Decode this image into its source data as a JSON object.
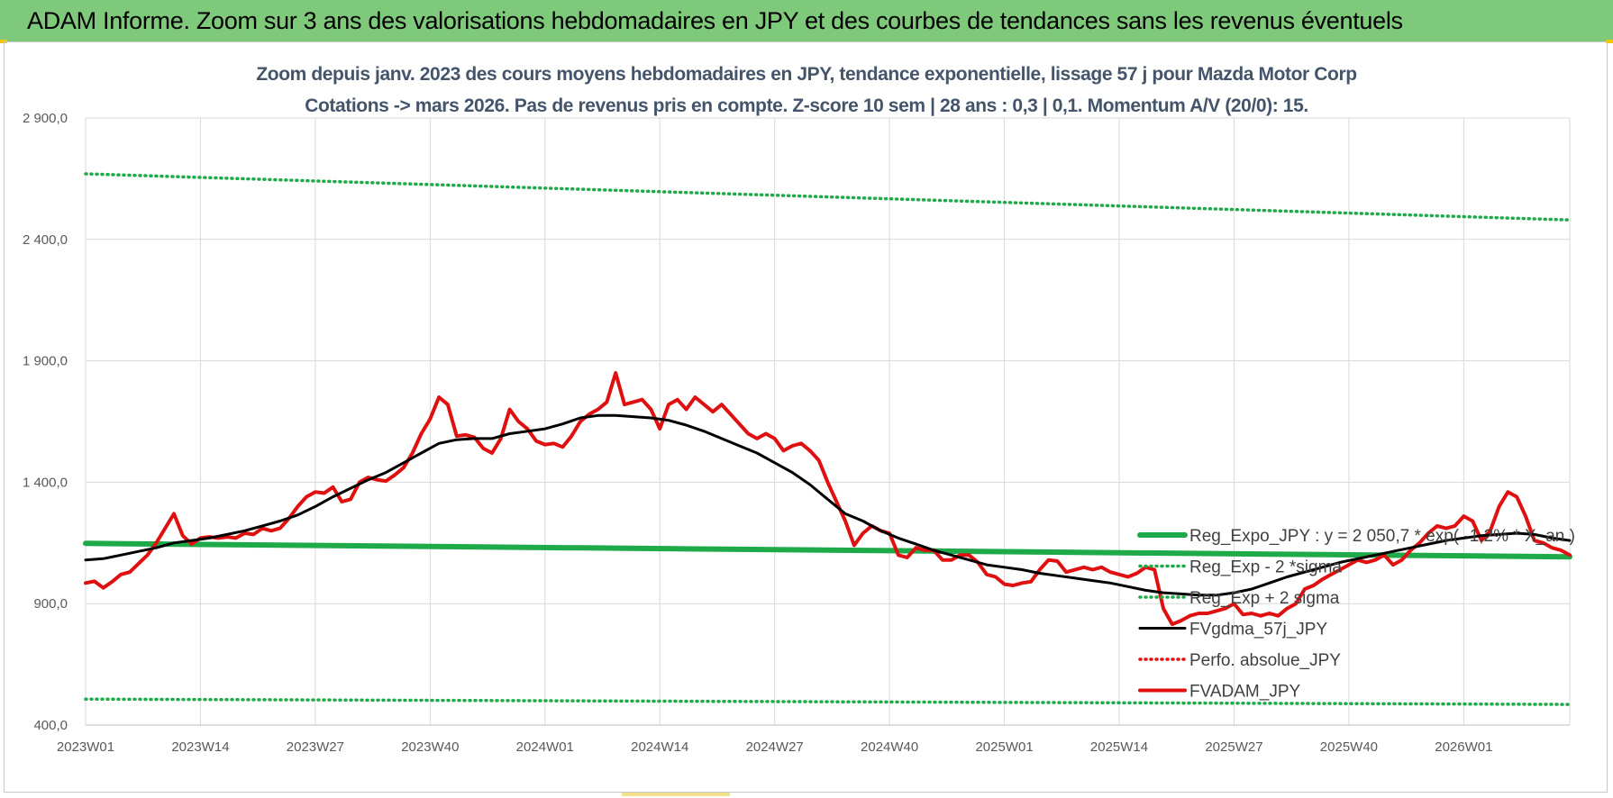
{
  "header": {
    "title": "ADAM Informe. Zoom sur 3 ans des valorisations hebdomadaires en JPY et des courbes de tendances sans les revenus éventuels"
  },
  "chart_data": {
    "type": "line",
    "title_line1": "Zoom depuis janv. 2023 des cours moyens hebdomadaires en JPY, tendance exponentielle, lissage 57 j pour Mazda Motor Corp",
    "title_line2": "Cotations -> mars 2026. Pas de revenus pris en compte. Z-score 10 sem | 28 ans : 0,3 | 0,1. Momentum A/V (20/0): 15.",
    "ylim": [
      400,
      2900
    ],
    "y_ticks": [
      400,
      900,
      1400,
      1900,
      2400,
      2900
    ],
    "y_tick_labels": [
      "400,0",
      "900,0",
      "1 400,0",
      "1 900,0",
      "2 400,0",
      "2 900,0"
    ],
    "x_tick_labels": [
      "2023W01",
      "2023W14",
      "2023W27",
      "2023W40",
      "2024W01",
      "2024W14",
      "2024W27",
      "2024W40",
      "2025W01",
      "2025W14",
      "2025W27",
      "2025W40",
      "2026W01"
    ],
    "x_tick_index": [
      0,
      13,
      26,
      39,
      52,
      65,
      78,
      91,
      104,
      117,
      130,
      143,
      156
    ],
    "n_weeks": 169,
    "legend_position": "right",
    "series": [
      {
        "name": "Reg_Expo_JPY : y = 2 050,7 * exp( -1,2% * X_an )",
        "style": "solid-thick",
        "color": "#1faa4a",
        "points": [
          [
            0,
            1148
          ],
          [
            168,
            1093
          ]
        ]
      },
      {
        "name": "Reg_Exp - 2 *sigma",
        "style": "dotted",
        "color": "#1faa4a",
        "points": [
          [
            0,
            507
          ],
          [
            168,
            485
          ]
        ]
      },
      {
        "name": "Reg_Exp + 2 sigma",
        "style": "dotted",
        "color": "#1faa4a",
        "points": [
          [
            0,
            2670
          ],
          [
            168,
            2480
          ]
        ]
      },
      {
        "name": "FVgdma_57j_JPY",
        "style": "solid",
        "color": "#000000",
        "points": [
          [
            0,
            1080
          ],
          [
            2,
            1085
          ],
          [
            4,
            1100
          ],
          [
            6,
            1115
          ],
          [
            8,
            1130
          ],
          [
            10,
            1150
          ],
          [
            12,
            1160
          ],
          [
            14,
            1170
          ],
          [
            16,
            1185
          ],
          [
            18,
            1200
          ],
          [
            20,
            1220
          ],
          [
            22,
            1240
          ],
          [
            24,
            1265
          ],
          [
            26,
            1300
          ],
          [
            28,
            1340
          ],
          [
            30,
            1375
          ],
          [
            32,
            1410
          ],
          [
            34,
            1440
          ],
          [
            36,
            1480
          ],
          [
            38,
            1520
          ],
          [
            40,
            1560
          ],
          [
            42,
            1575
          ],
          [
            44,
            1580
          ],
          [
            46,
            1580
          ],
          [
            48,
            1600
          ],
          [
            50,
            1610
          ],
          [
            52,
            1620
          ],
          [
            54,
            1640
          ],
          [
            56,
            1665
          ],
          [
            58,
            1675
          ],
          [
            60,
            1675
          ],
          [
            62,
            1670
          ],
          [
            64,
            1665
          ],
          [
            66,
            1655
          ],
          [
            68,
            1635
          ],
          [
            70,
            1610
          ],
          [
            72,
            1580
          ],
          [
            74,
            1550
          ],
          [
            76,
            1520
          ],
          [
            78,
            1480
          ],
          [
            80,
            1440
          ],
          [
            82,
            1390
          ],
          [
            84,
            1330
          ],
          [
            86,
            1270
          ],
          [
            88,
            1240
          ],
          [
            90,
            1200
          ],
          [
            92,
            1170
          ],
          [
            94,
            1145
          ],
          [
            96,
            1120
          ],
          [
            98,
            1100
          ],
          [
            100,
            1080
          ],
          [
            102,
            1060
          ],
          [
            104,
            1050
          ],
          [
            106,
            1040
          ],
          [
            108,
            1025
          ],
          [
            110,
            1015
          ],
          [
            112,
            1005
          ],
          [
            114,
            995
          ],
          [
            116,
            985
          ],
          [
            118,
            970
          ],
          [
            120,
            955
          ],
          [
            122,
            945
          ],
          [
            124,
            940
          ],
          [
            126,
            935
          ],
          [
            128,
            935
          ],
          [
            130,
            945
          ],
          [
            132,
            960
          ],
          [
            134,
            985
          ],
          [
            136,
            1010
          ],
          [
            138,
            1030
          ],
          [
            140,
            1050
          ],
          [
            142,
            1070
          ],
          [
            144,
            1085
          ],
          [
            146,
            1100
          ],
          [
            148,
            1115
          ],
          [
            150,
            1130
          ],
          [
            152,
            1145
          ],
          [
            154,
            1160
          ],
          [
            156,
            1170
          ],
          [
            158,
            1180
          ],
          [
            160,
            1185
          ],
          [
            162,
            1190
          ],
          [
            164,
            1185
          ],
          [
            166,
            1170
          ],
          [
            168,
            1160
          ]
        ]
      },
      {
        "name": "Perfo. absolue_JPY",
        "style": "dotted",
        "color": "#e01010",
        "points": []
      },
      {
        "name": "FVADAM_JPY",
        "style": "solid-thick",
        "color": "#e01010",
        "points": [
          [
            0,
            985
          ],
          [
            1,
            992
          ],
          [
            2,
            965
          ],
          [
            3,
            990
          ],
          [
            4,
            1020
          ],
          [
            5,
            1030
          ],
          [
            6,
            1065
          ],
          [
            7,
            1100
          ],
          [
            8,
            1150
          ],
          [
            9,
            1210
          ],
          [
            10,
            1270
          ],
          [
            11,
            1180
          ],
          [
            12,
            1145
          ],
          [
            13,
            1170
          ],
          [
            14,
            1175
          ],
          [
            15,
            1170
          ],
          [
            16,
            1175
          ],
          [
            17,
            1170
          ],
          [
            18,
            1190
          ],
          [
            19,
            1185
          ],
          [
            20,
            1210
          ],
          [
            21,
            1200
          ],
          [
            22,
            1210
          ],
          [
            23,
            1250
          ],
          [
            24,
            1300
          ],
          [
            25,
            1340
          ],
          [
            26,
            1360
          ],
          [
            27,
            1355
          ],
          [
            28,
            1380
          ],
          [
            29,
            1320
          ],
          [
            30,
            1330
          ],
          [
            31,
            1400
          ],
          [
            32,
            1420
          ],
          [
            33,
            1410
          ],
          [
            34,
            1405
          ],
          [
            35,
            1430
          ],
          [
            36,
            1460
          ],
          [
            37,
            1520
          ],
          [
            38,
            1600
          ],
          [
            39,
            1660
          ],
          [
            40,
            1750
          ],
          [
            41,
            1720
          ],
          [
            42,
            1590
          ],
          [
            43,
            1595
          ],
          [
            44,
            1585
          ],
          [
            45,
            1540
          ],
          [
            46,
            1520
          ],
          [
            47,
            1580
          ],
          [
            48,
            1700
          ],
          [
            49,
            1650
          ],
          [
            50,
            1620
          ],
          [
            51,
            1570
          ],
          [
            52,
            1555
          ],
          [
            53,
            1560
          ],
          [
            54,
            1545
          ],
          [
            55,
            1590
          ],
          [
            56,
            1650
          ],
          [
            57,
            1680
          ],
          [
            58,
            1700
          ],
          [
            59,
            1730
          ],
          [
            60,
            1850
          ],
          [
            61,
            1720
          ],
          [
            62,
            1730
          ],
          [
            63,
            1740
          ],
          [
            64,
            1700
          ],
          [
            65,
            1620
          ],
          [
            66,
            1720
          ],
          [
            67,
            1740
          ],
          [
            68,
            1700
          ],
          [
            69,
            1750
          ],
          [
            70,
            1720
          ],
          [
            71,
            1690
          ],
          [
            72,
            1720
          ],
          [
            73,
            1680
          ],
          [
            74,
            1640
          ],
          [
            75,
            1600
          ],
          [
            76,
            1580
          ],
          [
            77,
            1600
          ],
          [
            78,
            1580
          ],
          [
            79,
            1530
          ],
          [
            80,
            1550
          ],
          [
            81,
            1560
          ],
          [
            82,
            1530
          ],
          [
            83,
            1490
          ],
          [
            84,
            1400
          ],
          [
            85,
            1320
          ],
          [
            86,
            1240
          ],
          [
            87,
            1140
          ],
          [
            88,
            1190
          ],
          [
            89,
            1220
          ],
          [
            90,
            1200
          ],
          [
            91,
            1190
          ],
          [
            92,
            1100
          ],
          [
            93,
            1090
          ],
          [
            94,
            1130
          ],
          [
            95,
            1120
          ],
          [
            96,
            1120
          ],
          [
            97,
            1080
          ],
          [
            98,
            1080
          ],
          [
            99,
            1100
          ],
          [
            100,
            1100
          ],
          [
            101,
            1070
          ],
          [
            102,
            1020
          ],
          [
            103,
            1010
          ],
          [
            104,
            980
          ],
          [
            105,
            975
          ],
          [
            106,
            985
          ],
          [
            107,
            990
          ],
          [
            108,
            1040
          ],
          [
            109,
            1080
          ],
          [
            110,
            1075
          ],
          [
            111,
            1030
          ],
          [
            112,
            1040
          ],
          [
            113,
            1050
          ],
          [
            114,
            1040
          ],
          [
            115,
            1050
          ],
          [
            116,
            1030
          ],
          [
            117,
            1020
          ],
          [
            118,
            1010
          ],
          [
            119,
            1025
          ],
          [
            120,
            1050
          ],
          [
            121,
            1040
          ],
          [
            122,
            880
          ],
          [
            123,
            815
          ],
          [
            124,
            830
          ],
          [
            125,
            850
          ],
          [
            126,
            860
          ],
          [
            127,
            860
          ],
          [
            128,
            870
          ],
          [
            129,
            880
          ],
          [
            130,
            900
          ],
          [
            131,
            855
          ],
          [
            132,
            860
          ],
          [
            133,
            850
          ],
          [
            134,
            860
          ],
          [
            135,
            850
          ],
          [
            136,
            880
          ],
          [
            137,
            900
          ],
          [
            138,
            960
          ],
          [
            139,
            975
          ],
          [
            140,
            1000
          ],
          [
            141,
            1020
          ],
          [
            142,
            1040
          ],
          [
            143,
            1060
          ],
          [
            144,
            1080
          ],
          [
            145,
            1070
          ],
          [
            146,
            1080
          ],
          [
            147,
            1100
          ],
          [
            148,
            1060
          ],
          [
            149,
            1080
          ],
          [
            150,
            1120
          ],
          [
            151,
            1150
          ],
          [
            152,
            1190
          ],
          [
            153,
            1220
          ],
          [
            154,
            1210
          ],
          [
            155,
            1220
          ],
          [
            156,
            1260
          ],
          [
            157,
            1240
          ],
          [
            158,
            1160
          ],
          [
            159,
            1200
          ],
          [
            160,
            1300
          ],
          [
            161,
            1360
          ],
          [
            162,
            1340
          ],
          [
            163,
            1260
          ],
          [
            164,
            1160
          ],
          [
            165,
            1150
          ],
          [
            166,
            1130
          ],
          [
            167,
            1120
          ],
          [
            168,
            1100
          ]
        ]
      }
    ]
  }
}
